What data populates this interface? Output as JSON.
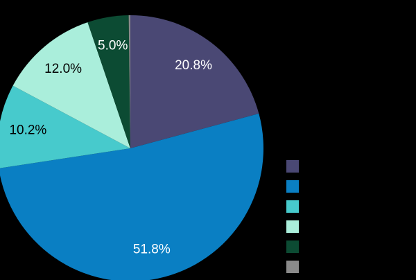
{
  "chart_data": {
    "type": "pie",
    "values": [
      20.8,
      51.8,
      10.2,
      12.0,
      5.0,
      0.2
    ],
    "value_labels": [
      "20.8%",
      "51.8%",
      "10.2%",
      "12.0%",
      "5.0%",
      null
    ],
    "colors": [
      "#4a4874",
      "#0a7fc3",
      "#47cacc",
      "#aaeedb",
      "#0c4b33",
      "#8a8a8a"
    ]
  }
}
